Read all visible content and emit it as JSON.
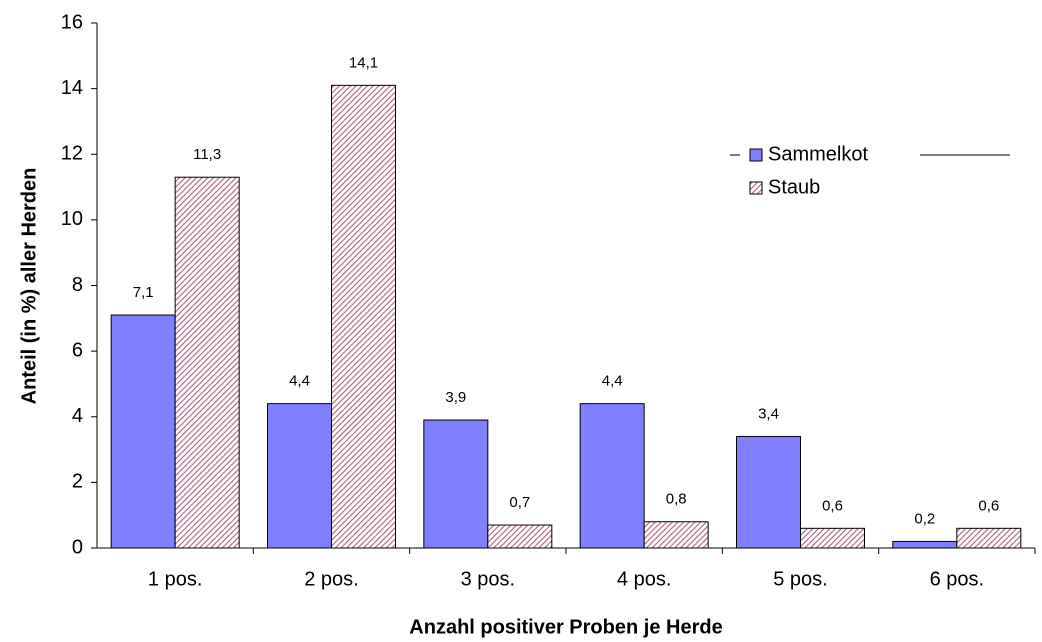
{
  "chart_data": {
    "type": "bar",
    "xlabel": "Anzahl positiver Proben je Herde",
    "ylabel": "Anteil (in %) aller Herden",
    "categories": [
      "1 pos.",
      "2 pos.",
      "3 pos.",
      "4 pos.",
      "5 pos.",
      "6 pos."
    ],
    "series": [
      {
        "name": "Sammelkot",
        "color": "#8080ff",
        "values": [
          7.1,
          4.4,
          3.9,
          4.4,
          3.4,
          0.2
        ],
        "value_labels": [
          "7,1",
          "4,4",
          "3,9",
          "4,4",
          "3,4",
          "0,2"
        ]
      },
      {
        "name": "Staub",
        "color": "#b06080",
        "pattern": "diagonal",
        "values": [
          11.3,
          14.1,
          0.7,
          0.8,
          0.6,
          0.6
        ],
        "value_labels": [
          "11,3",
          "14,1",
          "0,7",
          "0,8",
          "0,6",
          "0,6"
        ]
      }
    ],
    "ylim": [
      0,
      16
    ],
    "yticks": [
      0,
      2,
      4,
      6,
      8,
      10,
      12,
      14,
      16
    ]
  }
}
